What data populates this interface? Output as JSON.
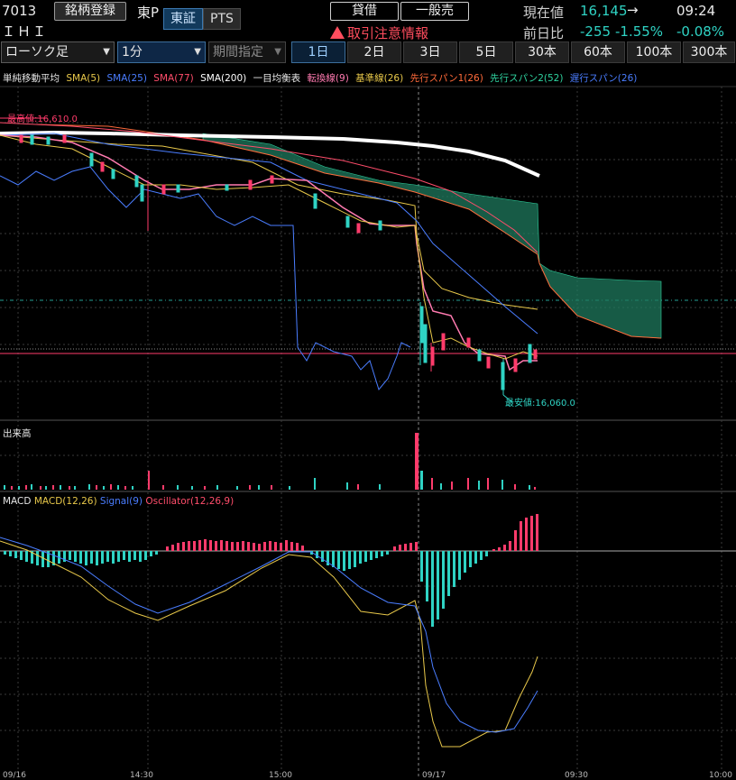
{
  "header": {
    "code": "7013",
    "name": "ＩＨＩ",
    "register_label": "銘柄登録",
    "market_prefix": "東P",
    "market_tab_tse": "東証",
    "market_tab_pts": "PTS",
    "lending_label": "貸借",
    "general_label": "一般売",
    "warning_label": "取引注意情報",
    "price_label": "現在値",
    "price_value": "16,145",
    "price_arrow": "→",
    "time": "09:24",
    "change_label": "前日比",
    "change_value": "-255",
    "change_pct": "-1.55%",
    "change_pct2": "-0.08%"
  },
  "toolbar": {
    "chart_type": "ローソク足",
    "interval": "1分",
    "period_placeholder": "期間指定",
    "ranges": [
      "1日",
      "2日",
      "3日",
      "5日",
      "30本",
      "60本",
      "100本",
      "300本"
    ],
    "active_range": "1日"
  },
  "legend": {
    "items": [
      {
        "label": "単純移動平均",
        "color": "#e6e6e6"
      },
      {
        "label": "SMA(5)",
        "color": "#e8c84a"
      },
      {
        "label": "SMA(25)",
        "color": "#4a7dff"
      },
      {
        "label": "SMA(77)",
        "color": "#ff4d6b"
      },
      {
        "label": "SMA(200)",
        "color": "#ffffff"
      },
      {
        "label": "一目均衡表",
        "color": "#e6e6e6"
      },
      {
        "label": "転換線(9)",
        "color": "#ff7ab0"
      },
      {
        "label": "基準線(26)",
        "color": "#e8c84a"
      },
      {
        "label": "先行スパン1(26)",
        "color": "#ff6a3a"
      },
      {
        "label": "先行スパン2(52)",
        "color": "#2fd3a0"
      },
      {
        "label": "遅行スパン(26)",
        "color": "#4a7dff"
      }
    ]
  },
  "annotations": {
    "high_label": "最高値:16,610.0",
    "low_label": "最安値:16,060.0"
  },
  "volume_panel": {
    "label": "出来高"
  },
  "macd_panel": {
    "items": [
      {
        "label": "MACD",
        "color": "#e6e6e6"
      },
      {
        "label": "MACD(12,26)",
        "color": "#e8c84a"
      },
      {
        "label": "Signal(9)",
        "color": "#4a7dff"
      },
      {
        "label": "Oscillator(12,26,9)",
        "color": "#ff4d6b"
      }
    ]
  },
  "time_axis": {
    "labels": [
      "09/16",
      "14:30",
      "15:00",
      "09/17",
      "09:30",
      "10:00"
    ]
  },
  "colors": {
    "up": "#ff3b6b",
    "down": "#2fd3c4",
    "cloud": "#1f8a6a"
  }
}
